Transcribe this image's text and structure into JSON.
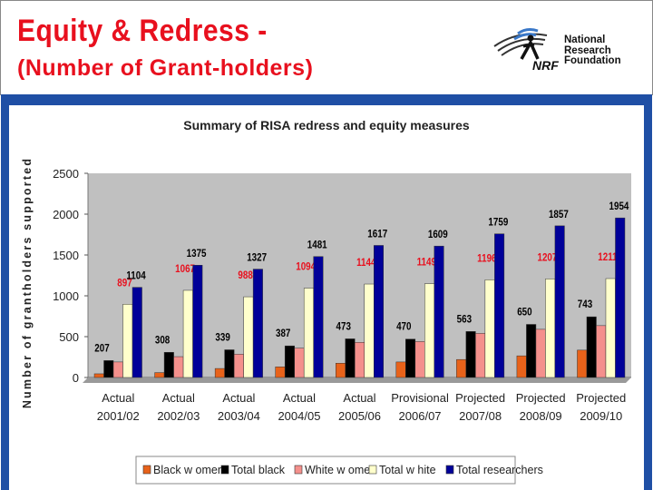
{
  "header": {
    "title_line1": "Equity & Redress -",
    "title_line2": "(Number of Grant-holders)",
    "logo_text": [
      "National",
      "Research",
      "Foundation"
    ],
    "logo_abbrev": "NRF"
  },
  "colors": {
    "title_red": "#e8101e",
    "slide_bg": "#1f4fa5",
    "plot_bg": "#c0c0c0",
    "label_red": "#e8101e"
  },
  "chart_data": {
    "type": "bar",
    "title": "Summary of RISA redress and equity measures",
    "ylabel": "Number of grantholders supported",
    "xlabel": "",
    "ylim": [
      0,
      2500
    ],
    "yticks": [
      0,
      500,
      1000,
      1500,
      2000,
      2500
    ],
    "grid": false,
    "legend_position": "bottom",
    "categories": [
      [
        "Actual",
        "2001/02"
      ],
      [
        "Actual",
        "2002/03"
      ],
      [
        "Actual",
        "2003/04"
      ],
      [
        "Actual",
        "2004/05"
      ],
      [
        "Actual",
        "2005/06"
      ],
      [
        "Provisional",
        "2006/07"
      ],
      [
        "Projected",
        "2007/08"
      ],
      [
        "Projected",
        "2008/09"
      ],
      [
        "Projected",
        "2009/10"
      ]
    ],
    "series": [
      {
        "name": "Black w omen",
        "color": "#e8621a",
        "values": [
          45,
          60,
          110,
          130,
          175,
          190,
          220,
          265,
          335
        ],
        "labels": null
      },
      {
        "name": "Total black",
        "color": "#000000",
        "values": [
          207,
          308,
          339,
          387,
          473,
          470,
          563,
          650,
          743
        ],
        "labels": [
          207,
          308,
          339,
          387,
          473,
          470,
          563,
          650,
          743
        ],
        "label_color": "#000000"
      },
      {
        "name": "White w omen",
        "color": "#f4908c",
        "values": [
          190,
          255,
          285,
          360,
          430,
          440,
          540,
          590,
          635
        ],
        "labels": null
      },
      {
        "name": "Total w hite",
        "color": "#ffffcc",
        "values": [
          897,
          1067,
          988,
          1094,
          1144,
          1149,
          1196,
          1207,
          1211
        ],
        "labels": [
          897,
          1067,
          988,
          1094,
          1144,
          1149,
          1196,
          1207,
          1211
        ],
        "label_color": "#e8101e"
      },
      {
        "name": "Total researchers",
        "color": "#000099",
        "values": [
          1104,
          1375,
          1327,
          1481,
          1617,
          1609,
          1759,
          1857,
          1954
        ],
        "labels": [
          1104,
          1375,
          1327,
          1481,
          1617,
          1609,
          1759,
          1857,
          1954
        ],
        "label_color": "#000000"
      }
    ]
  }
}
